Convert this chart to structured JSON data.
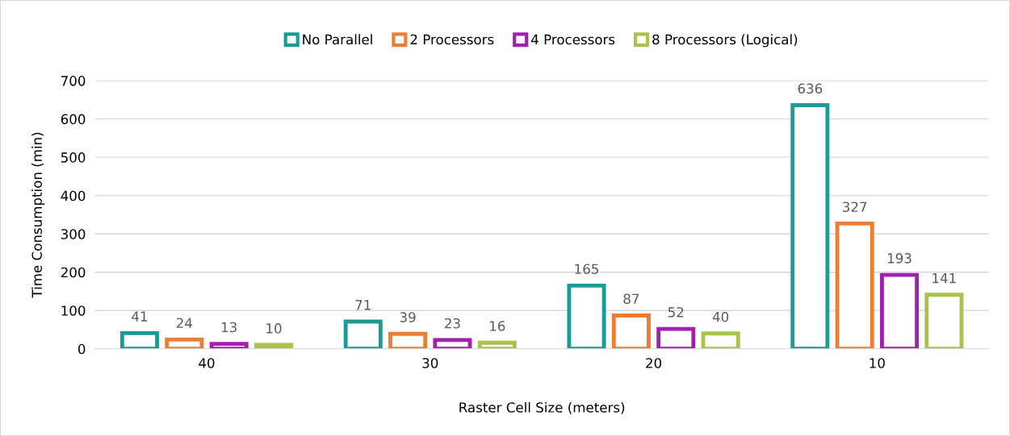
{
  "chart_data": {
    "type": "bar",
    "xlabel": "Raster Cell Size (meters)",
    "ylabel": "Time Consumption (min)",
    "categories": [
      "40",
      "30",
      "20",
      "10"
    ],
    "series": [
      {
        "name": "No Parallel",
        "color": "#1a9c96",
        "values": [
          41,
          71,
          165,
          636
        ]
      },
      {
        "name": "2 Processors",
        "color": "#ed7d31",
        "values": [
          24,
          39,
          87,
          327
        ]
      },
      {
        "name": "4 Processors",
        "color": "#a020b0",
        "values": [
          13,
          23,
          52,
          193
        ]
      },
      {
        "name": "8 Processors (Logical)",
        "color": "#a9c24a",
        "values": [
          10,
          16,
          40,
          141
        ]
      }
    ],
    "ylim": [
      0,
      700
    ],
    "yticks": [
      0,
      100,
      200,
      300,
      400,
      500,
      600,
      700
    ],
    "grid": "y",
    "legend": "top",
    "data_labels": true
  }
}
